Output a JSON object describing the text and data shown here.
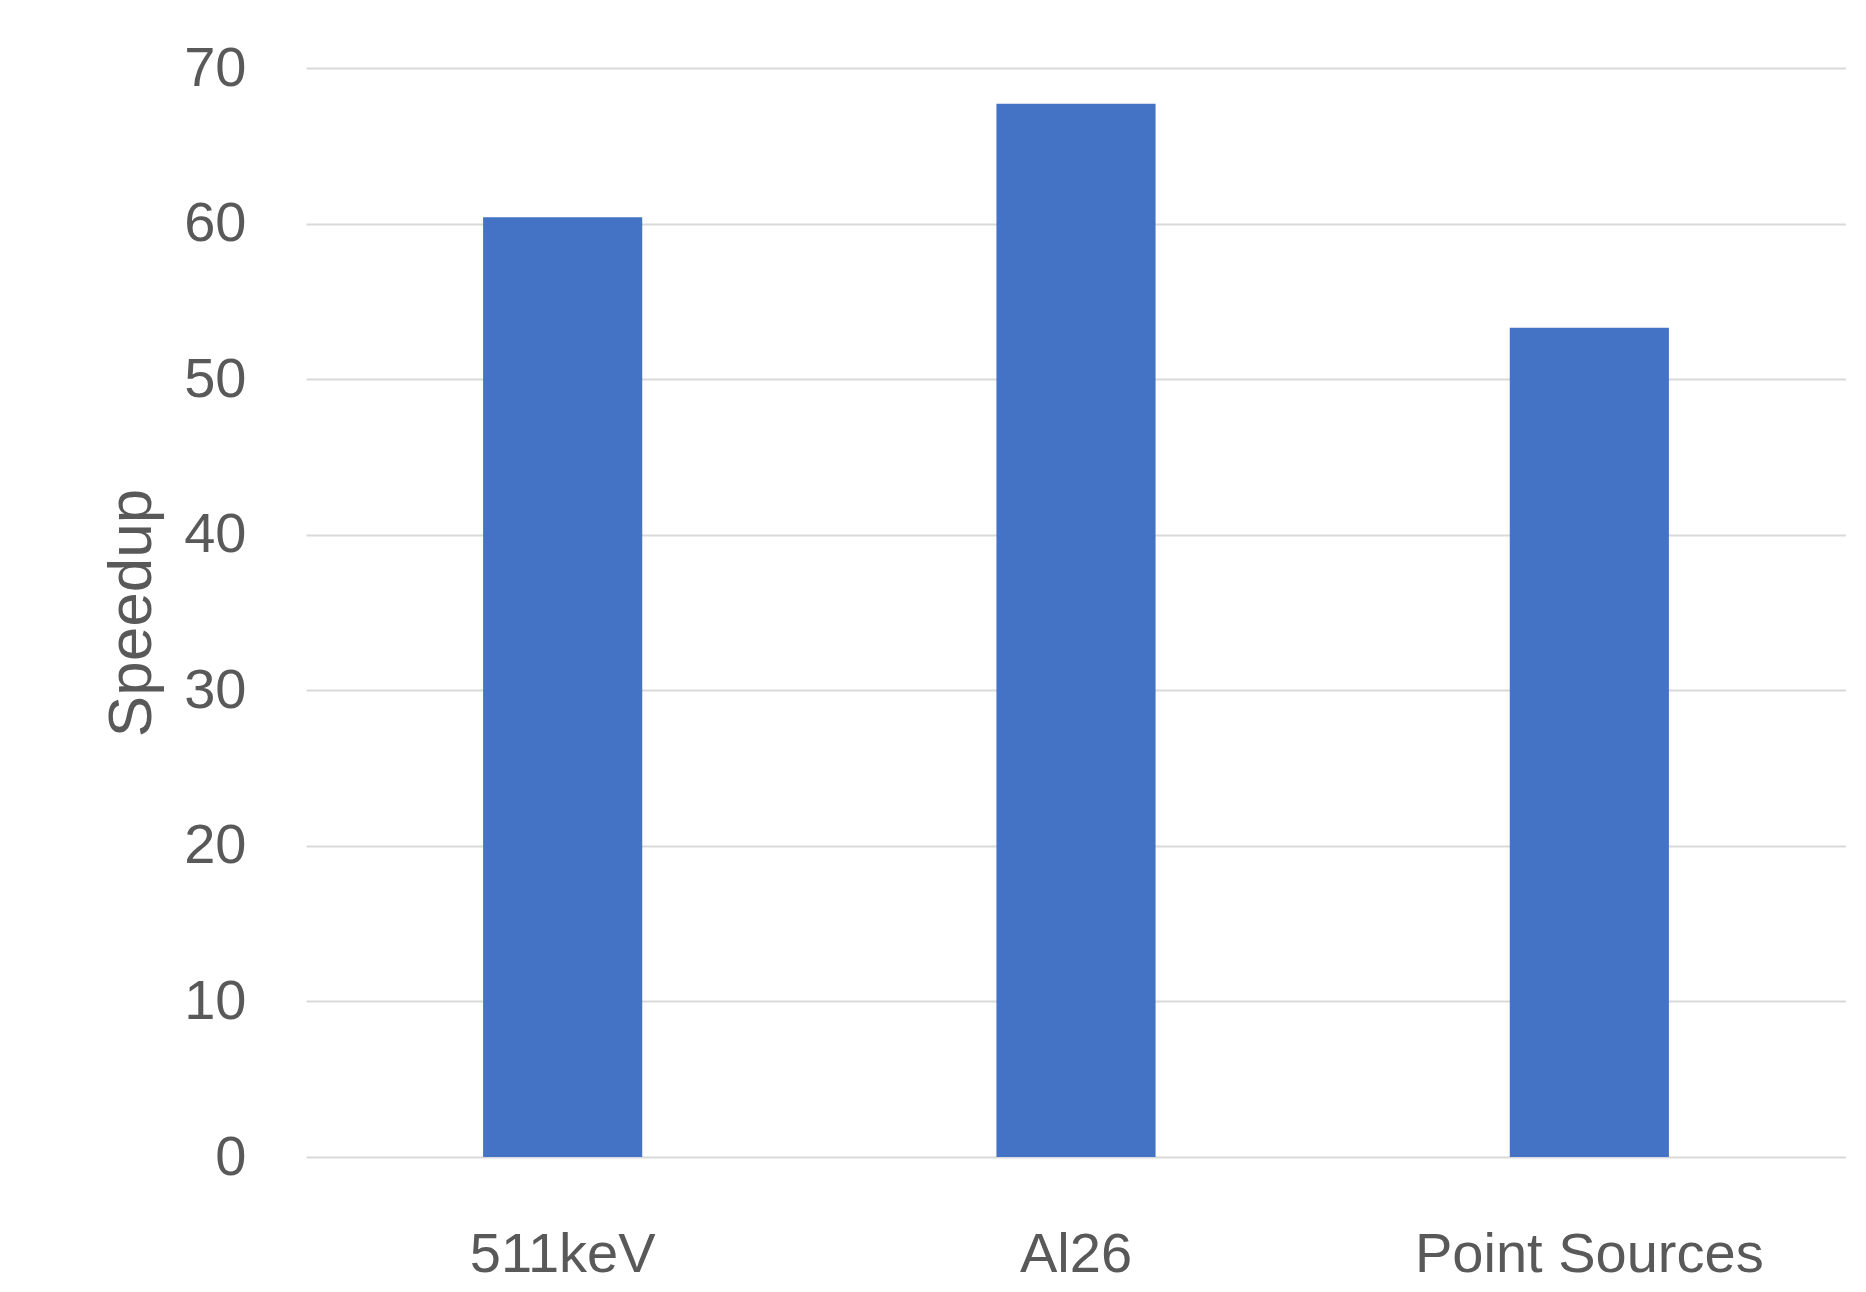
{
  "chart_data": {
    "type": "bar",
    "ylabel": "Speedup",
    "categories": [
      "511keV",
      "Al26",
      "Point Sources"
    ],
    "series": [
      {
        "color": "#4472c4",
        "values": [
          60.4,
          67.7,
          53.3
        ]
      }
    ],
    "ylim": [
      0,
      70
    ],
    "yticks": [
      0,
      10,
      20,
      30,
      40,
      50,
      60,
      70
    ],
    "grid": "y",
    "legend": false
  }
}
